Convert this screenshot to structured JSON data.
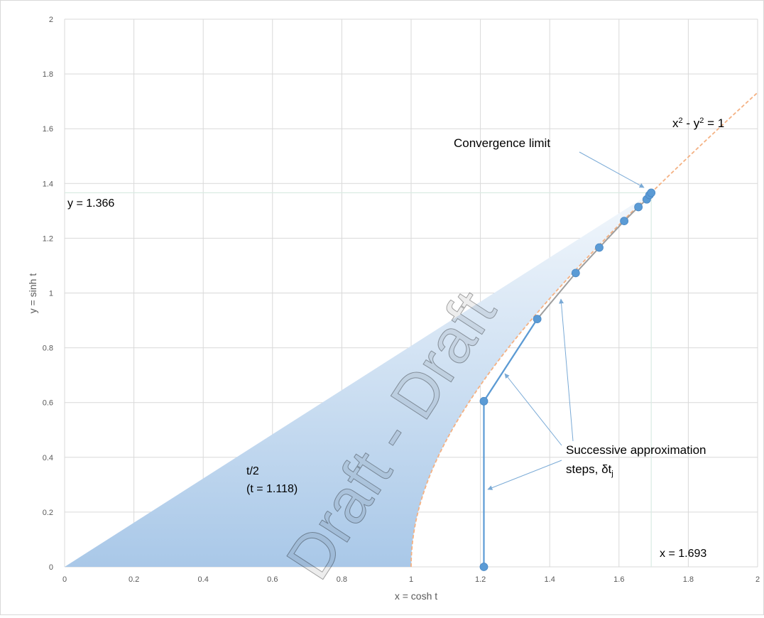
{
  "chart_data": {
    "type": "scatter",
    "xlabel": "x = cosh t",
    "ylabel": "y = sinh t",
    "xlim": [
      0,
      2
    ],
    "ylim": [
      0,
      2
    ],
    "x_ticks": [
      "0",
      "0.2",
      "0.4",
      "0.6",
      "0.8",
      "1",
      "1.2",
      "1.4",
      "1.6",
      "1.8",
      "2"
    ],
    "y_ticks": [
      "0",
      "0.2",
      "0.4",
      "0.6",
      "0.8",
      "1",
      "1.2",
      "1.4",
      "1.6",
      "1.8",
      "2"
    ],
    "grid": true,
    "series": [
      {
        "values": [
          {
            "x": 1.21,
            "y": 0.0
          },
          {
            "x": 1.21,
            "y": 0.605
          },
          {
            "x": 1.364,
            "y": 0.905
          },
          {
            "x": 1.475,
            "y": 1.073
          },
          {
            "x": 1.543,
            "y": 1.166
          },
          {
            "x": 1.615,
            "y": 1.263
          },
          {
            "x": 1.656,
            "y": 1.314
          },
          {
            "x": 1.68,
            "y": 1.342
          },
          {
            "x": 1.688,
            "y": 1.358
          },
          {
            "x": 1.693,
            "y": 1.366
          }
        ],
        "color": "#5b9bd5"
      }
    ],
    "curve": {
      "label": "x² - y² = 1",
      "color": "#f4b183"
    },
    "sector": {
      "t": 1.118
    },
    "reference": {
      "x": 1.693,
      "y": 1.366
    },
    "annotations": {
      "convergence": "Convergence limit",
      "steps_line1": "Successive approximation",
      "steps_line2": "steps, δt",
      "steps_sub": "j",
      "t_half": "t/2",
      "t_value": "(t = 1.118)",
      "y_ref": "y = 1.366",
      "x_ref": "x = 1.693",
      "curve_label": "x² - y² = 1"
    },
    "watermark": "Draft - Draft"
  },
  "colors": {
    "grid": "#d9d9d9",
    "marker": "#5b9bd5",
    "connector": "#9e9e9e",
    "curve": "#f4b183",
    "arrow": "#7aaad6",
    "sector_dark": "#a9c8e8",
    "sector_light": "#eef4fb"
  }
}
